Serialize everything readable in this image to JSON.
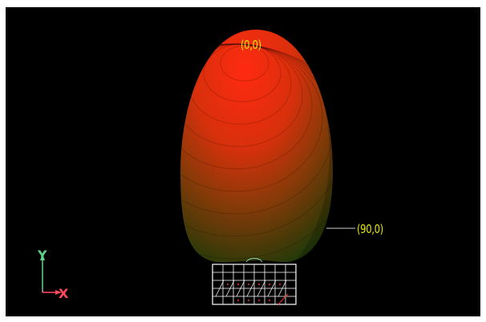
{
  "viewer": {
    "background_color": "#000000",
    "pattern_color_top": "#ff2a10",
    "pattern_color_bottom": "#0a3a0a",
    "annotations": {
      "top": "(0,0)",
      "right": "(90,0)",
      "color": "#e6e600"
    },
    "axes": {
      "y_label": "Y",
      "x_label": "X",
      "y_color": "#5fd38a",
      "x_color": "#ff4a5a"
    }
  }
}
